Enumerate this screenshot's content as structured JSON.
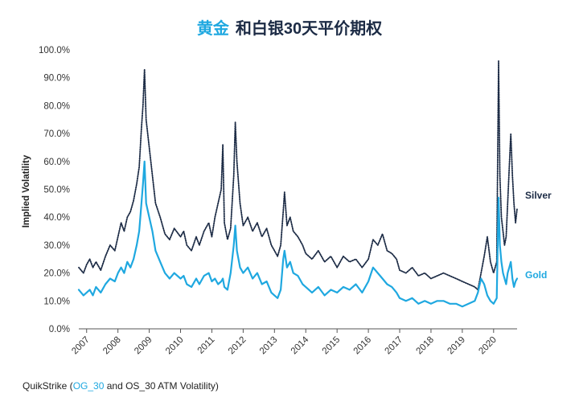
{
  "title": {
    "highlight": "黄金",
    "rest": "和白银30天平价期权"
  },
  "source": {
    "prefix": "QuikStrike (",
    "highlight": "OG_30",
    "suffix": " and OS_30 ATM Volatility)"
  },
  "colors": {
    "gold": "#1FA8E0",
    "silver": "#1C2B45",
    "title_dark": "#1C2B45"
  },
  "chart_data": {
    "type": "line",
    "title": "黄金 和白银30天平价期权",
    "xlabel": "",
    "ylabel": "Implied Volatility",
    "ylim": [
      0,
      100
    ],
    "xlim": [
      2006.75,
      2020.75
    ],
    "yticks": [
      0,
      10,
      20,
      30,
      40,
      50,
      60,
      70,
      80,
      90,
      100
    ],
    "ytick_labels": [
      "0.0%",
      "10.0%",
      "20.0%",
      "30.0%",
      "40.0%",
      "50.0%",
      "60.0%",
      "70.0%",
      "80.0%",
      "90.0%",
      "100.0%"
    ],
    "xticks": [
      2007,
      2008,
      2009,
      2010,
      2011,
      2012,
      2013,
      2014,
      2015,
      2016,
      2017,
      2018,
      2019,
      2020
    ],
    "xtick_labels": [
      "2007",
      "2008",
      "2009",
      "2010",
      "2011",
      "2012",
      "2013",
      "2014",
      "2015",
      "2016",
      "2017",
      "2018",
      "2019",
      "2020"
    ],
    "grid": false,
    "series": [
      {
        "name": "Silver",
        "color": "#1C2B45",
        "style": "dotted",
        "x": [
          2006.75,
          2006.9,
          2007.0,
          2007.1,
          2007.2,
          2007.3,
          2007.45,
          2007.6,
          2007.75,
          2007.9,
          2008.0,
          2008.1,
          2008.2,
          2008.3,
          2008.4,
          2008.5,
          2008.6,
          2008.68,
          2008.75,
          2008.8,
          2008.85,
          2008.9,
          2009.0,
          2009.1,
          2009.2,
          2009.35,
          2009.5,
          2009.65,
          2009.8,
          2010.0,
          2010.1,
          2010.2,
          2010.35,
          2010.5,
          2010.6,
          2010.75,
          2010.9,
          2011.0,
          2011.1,
          2011.2,
          2011.3,
          2011.35,
          2011.4,
          2011.5,
          2011.6,
          2011.7,
          2011.75,
          2011.8,
          2011.9,
          2012.0,
          2012.15,
          2012.3,
          2012.45,
          2012.6,
          2012.75,
          2012.9,
          2013.0,
          2013.1,
          2013.2,
          2013.28,
          2013.32,
          2013.4,
          2013.5,
          2013.6,
          2013.75,
          2013.9,
          2014.0,
          2014.2,
          2014.4,
          2014.6,
          2014.8,
          2015.0,
          2015.2,
          2015.4,
          2015.6,
          2015.8,
          2016.0,
          2016.15,
          2016.3,
          2016.45,
          2016.6,
          2016.75,
          2016.9,
          2017.0,
          2017.2,
          2017.4,
          2017.6,
          2017.8,
          2018.0,
          2018.2,
          2018.4,
          2018.6,
          2018.8,
          2019.0,
          2019.2,
          2019.4,
          2019.5,
          2019.6,
          2019.7,
          2019.8,
          2019.9,
          2020.0,
          2020.1,
          2020.16,
          2020.2,
          2020.25,
          2020.3,
          2020.35,
          2020.4,
          2020.45,
          2020.5,
          2020.55,
          2020.6,
          2020.65,
          2020.7,
          2020.75
        ],
        "values": [
          22,
          20,
          23,
          25,
          22,
          24,
          21,
          26,
          30,
          28,
          33,
          38,
          35,
          40,
          42,
          46,
          52,
          58,
          72,
          80,
          93,
          75,
          65,
          55,
          45,
          40,
          34,
          32,
          36,
          33,
          35,
          30,
          28,
          33,
          30,
          35,
          38,
          33,
          40,
          45,
          50,
          66,
          38,
          32,
          36,
          55,
          74,
          60,
          45,
          37,
          40,
          35,
          38,
          33,
          36,
          30,
          28,
          26,
          30,
          42,
          49,
          37,
          40,
          35,
          33,
          30,
          27,
          25,
          28,
          24,
          26,
          22,
          26,
          24,
          25,
          22,
          25,
          32,
          30,
          34,
          28,
          27,
          25,
          21,
          20,
          22,
          19,
          20,
          18,
          19,
          20,
          19,
          18,
          17,
          16,
          15,
          14,
          20,
          26,
          33,
          24,
          20,
          24,
          96,
          55,
          40,
          35,
          30,
          33,
          45,
          58,
          70,
          55,
          45,
          38,
          43
        ]
      },
      {
        "name": "Gold",
        "color": "#1FA8E0",
        "style": "solid",
        "x": [
          2006.75,
          2006.9,
          2007.0,
          2007.1,
          2007.2,
          2007.3,
          2007.45,
          2007.6,
          2007.75,
          2007.9,
          2008.0,
          2008.1,
          2008.2,
          2008.3,
          2008.4,
          2008.5,
          2008.6,
          2008.68,
          2008.75,
          2008.8,
          2008.85,
          2008.9,
          2009.0,
          2009.1,
          2009.2,
          2009.35,
          2009.5,
          2009.65,
          2009.8,
          2010.0,
          2010.1,
          2010.2,
          2010.35,
          2010.5,
          2010.6,
          2010.75,
          2010.9,
          2011.0,
          2011.1,
          2011.2,
          2011.3,
          2011.35,
          2011.4,
          2011.5,
          2011.6,
          2011.7,
          2011.75,
          2011.8,
          2011.9,
          2012.0,
          2012.15,
          2012.3,
          2012.45,
          2012.6,
          2012.75,
          2012.9,
          2013.0,
          2013.1,
          2013.2,
          2013.28,
          2013.32,
          2013.4,
          2013.5,
          2013.6,
          2013.75,
          2013.9,
          2014.0,
          2014.2,
          2014.4,
          2014.6,
          2014.8,
          2015.0,
          2015.2,
          2015.4,
          2015.6,
          2015.8,
          2016.0,
          2016.15,
          2016.3,
          2016.45,
          2016.6,
          2016.75,
          2016.9,
          2017.0,
          2017.2,
          2017.4,
          2017.6,
          2017.8,
          2018.0,
          2018.2,
          2018.4,
          2018.6,
          2018.8,
          2019.0,
          2019.2,
          2019.4,
          2019.5,
          2019.6,
          2019.7,
          2019.8,
          2019.9,
          2020.0,
          2020.1,
          2020.16,
          2020.2,
          2020.25,
          2020.3,
          2020.35,
          2020.4,
          2020.45,
          2020.5,
          2020.55,
          2020.6,
          2020.65,
          2020.7,
          2020.75
        ],
        "values": [
          14,
          12,
          13,
          14,
          12,
          15,
          13,
          16,
          18,
          17,
          20,
          22,
          20,
          24,
          22,
          25,
          30,
          35,
          45,
          52,
          60,
          45,
          40,
          35,
          28,
          24,
          20,
          18,
          20,
          18,
          19,
          16,
          15,
          18,
          16,
          19,
          20,
          17,
          18,
          16,
          17,
          18,
          15,
          14,
          20,
          30,
          37,
          28,
          22,
          20,
          22,
          18,
          20,
          16,
          17,
          13,
          12,
          11,
          14,
          25,
          28,
          22,
          24,
          20,
          19,
          16,
          15,
          13,
          15,
          12,
          14,
          13,
          15,
          14,
          16,
          13,
          17,
          22,
          20,
          18,
          16,
          15,
          13,
          11,
          10,
          11,
          9,
          10,
          9,
          10,
          10,
          9,
          9,
          8,
          9,
          10,
          13,
          18,
          16,
          12,
          10,
          9,
          11,
          47,
          30,
          24,
          20,
          18,
          16,
          20,
          22,
          24,
          18,
          15,
          17,
          18
        ]
      }
    ],
    "series_labels": {
      "silver": "Silver",
      "gold": "Gold"
    }
  }
}
